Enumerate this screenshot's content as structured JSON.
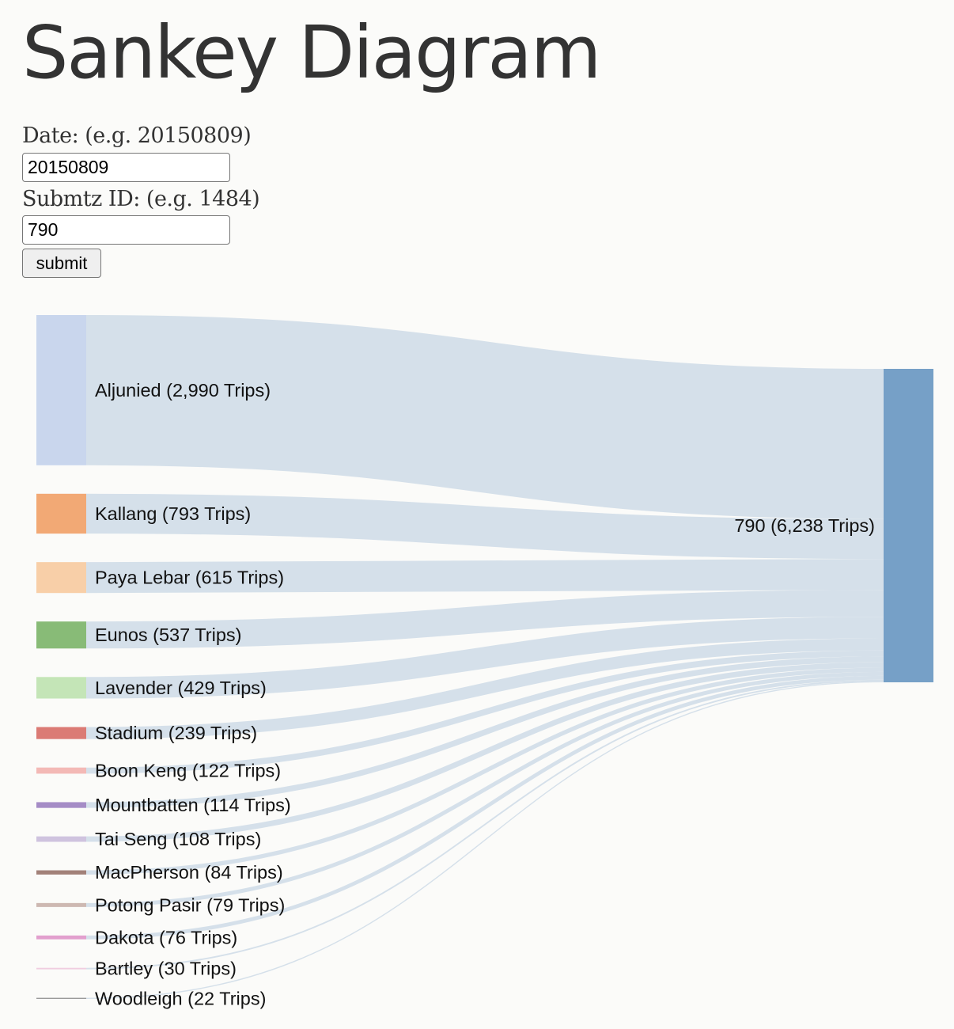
{
  "header": {
    "title": "Sankey Diagram"
  },
  "form": {
    "date_label": "Date: (e.g. 20150809)",
    "date_value": "20150809",
    "id_label": "Submtz ID: (e.g. 1484)",
    "id_value": "790",
    "submit_label": "submit"
  },
  "chart_data": {
    "type": "sankey",
    "link_color": "#d5e0ea",
    "target": {
      "name": "790",
      "trips": 6238,
      "label": "790 (6,238 Trips)",
      "color": "#76a0c7"
    },
    "sources": [
      {
        "name": "Aljunied",
        "trips": 2990,
        "label": "Aljunied (2,990 Trips)",
        "color": "#c9d6ed"
      },
      {
        "name": "Kallang",
        "trips": 793,
        "label": "Kallang (793 Trips)",
        "color": "#f2a975"
      },
      {
        "name": "Paya Lebar",
        "trips": 615,
        "label": "Paya Lebar (615 Trips)",
        "color": "#f8cfa8"
      },
      {
        "name": "Eunos",
        "trips": 537,
        "label": "Eunos (537 Trips)",
        "color": "#88bb77"
      },
      {
        "name": "Lavender",
        "trips": 429,
        "label": "Lavender (429 Trips)",
        "color": "#c4e5b7"
      },
      {
        "name": "Stadium",
        "trips": 239,
        "label": "Stadium (239 Trips)",
        "color": "#db7b75"
      },
      {
        "name": "Boon Keng",
        "trips": 122,
        "label": "Boon Keng (122 Trips)",
        "color": "#f3b9b6"
      },
      {
        "name": "Mountbatten",
        "trips": 114,
        "label": "Mountbatten (114 Trips)",
        "color": "#a58cc6"
      },
      {
        "name": "Tai Seng",
        "trips": 108,
        "label": "Tai Seng (108 Trips)",
        "color": "#cfc3df"
      },
      {
        "name": "MacPherson",
        "trips": 84,
        "label": "MacPherson (84 Trips)",
        "color": "#a28179"
      },
      {
        "name": "Potong Pasir",
        "trips": 79,
        "label": "Potong Pasir (79 Trips)",
        "color": "#cdb8b2"
      },
      {
        "name": "Dakota",
        "trips": 76,
        "label": "Dakota (76 Trips)",
        "color": "#e29fce"
      },
      {
        "name": "Bartley",
        "trips": 30,
        "label": "Bartley (30 Trips)",
        "color": "#f0cde0"
      },
      {
        "name": "Woodleigh",
        "trips": 22,
        "label": "Woodleigh (22 Trips)",
        "color": "#9a9a9a"
      }
    ]
  }
}
